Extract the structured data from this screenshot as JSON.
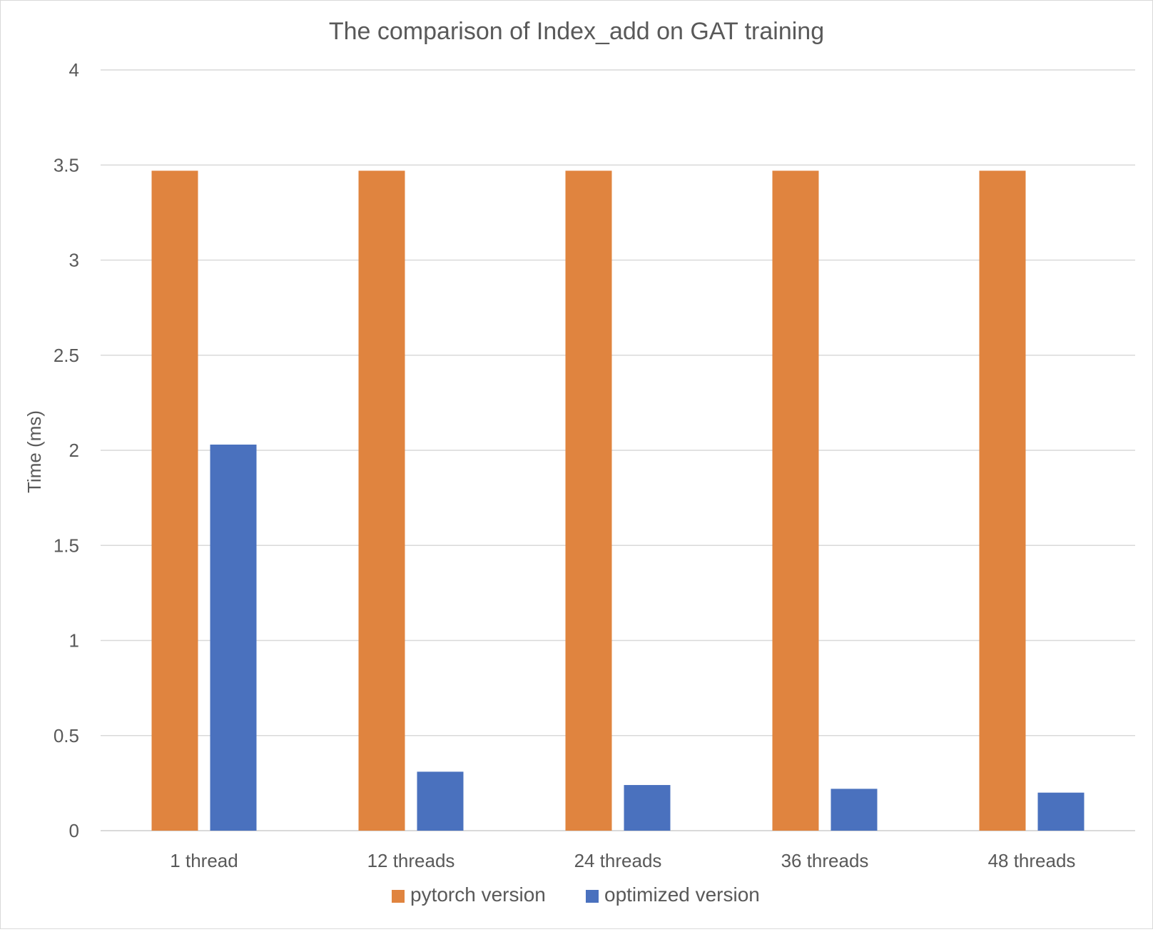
{
  "chart_data": {
    "type": "bar",
    "title": "The comparison of Index_add on GAT training",
    "xlabel": "",
    "ylabel": "Time (ms)",
    "ylim": [
      0,
      4
    ],
    "yticks": [
      "0",
      "0.5",
      "1",
      "1.5",
      "2",
      "2.5",
      "3",
      "3.5",
      "4"
    ],
    "categories": [
      "1 thread",
      "12 threads",
      "24 threads",
      "36 threads",
      "48 threads"
    ],
    "series": [
      {
        "name": "pytorch version",
        "color": "#E0843F",
        "values": [
          3.47,
          3.47,
          3.47,
          3.47,
          3.47
        ]
      },
      {
        "name": "optimized version",
        "color": "#4A71BE",
        "values": [
          2.03,
          0.31,
          0.24,
          0.22,
          0.2
        ]
      }
    ],
    "grid": true,
    "legend_position": "bottom"
  }
}
